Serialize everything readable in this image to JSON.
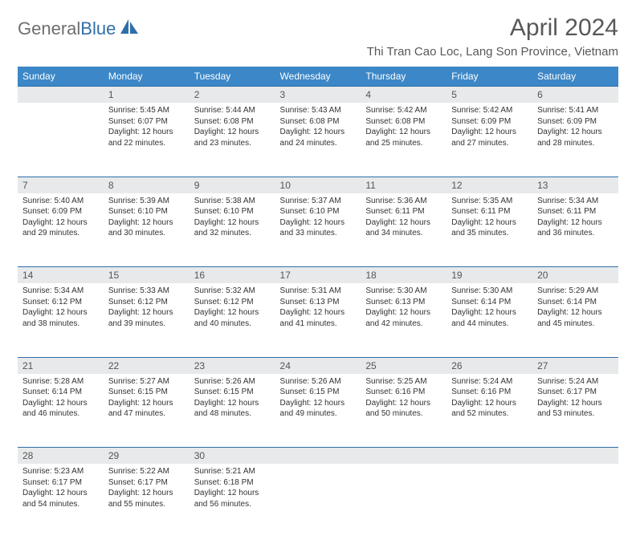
{
  "logo": {
    "part1": "General",
    "part2": "Blue"
  },
  "title": "April 2024",
  "location": "Thi Tran Cao Loc, Lang Son Province, Vietnam",
  "columns": [
    "Sunday",
    "Monday",
    "Tuesday",
    "Wednesday",
    "Thursday",
    "Friday",
    "Saturday"
  ],
  "header_bg": "#3c87c7",
  "header_fg": "#ffffff",
  "daynum_bg": "#e7e9ea",
  "rule_color": "#2f6fa8",
  "text_color": "#333333",
  "title_color": "#585858",
  "weeks": [
    {
      "nums": [
        "",
        "1",
        "2",
        "3",
        "4",
        "5",
        "6"
      ],
      "cells": [
        null,
        {
          "sunrise": "5:45 AM",
          "sunset": "6:07 PM",
          "daylight": "12 hours and 22 minutes."
        },
        {
          "sunrise": "5:44 AM",
          "sunset": "6:08 PM",
          "daylight": "12 hours and 23 minutes."
        },
        {
          "sunrise": "5:43 AM",
          "sunset": "6:08 PM",
          "daylight": "12 hours and 24 minutes."
        },
        {
          "sunrise": "5:42 AM",
          "sunset": "6:08 PM",
          "daylight": "12 hours and 25 minutes."
        },
        {
          "sunrise": "5:42 AM",
          "sunset": "6:09 PM",
          "daylight": "12 hours and 27 minutes."
        },
        {
          "sunrise": "5:41 AM",
          "sunset": "6:09 PM",
          "daylight": "12 hours and 28 minutes."
        }
      ]
    },
    {
      "nums": [
        "7",
        "8",
        "9",
        "10",
        "11",
        "12",
        "13"
      ],
      "cells": [
        {
          "sunrise": "5:40 AM",
          "sunset": "6:09 PM",
          "daylight": "12 hours and 29 minutes."
        },
        {
          "sunrise": "5:39 AM",
          "sunset": "6:10 PM",
          "daylight": "12 hours and 30 minutes."
        },
        {
          "sunrise": "5:38 AM",
          "sunset": "6:10 PM",
          "daylight": "12 hours and 32 minutes."
        },
        {
          "sunrise": "5:37 AM",
          "sunset": "6:10 PM",
          "daylight": "12 hours and 33 minutes."
        },
        {
          "sunrise": "5:36 AM",
          "sunset": "6:11 PM",
          "daylight": "12 hours and 34 minutes."
        },
        {
          "sunrise": "5:35 AM",
          "sunset": "6:11 PM",
          "daylight": "12 hours and 35 minutes."
        },
        {
          "sunrise": "5:34 AM",
          "sunset": "6:11 PM",
          "daylight": "12 hours and 36 minutes."
        }
      ]
    },
    {
      "nums": [
        "14",
        "15",
        "16",
        "17",
        "18",
        "19",
        "20"
      ],
      "cells": [
        {
          "sunrise": "5:34 AM",
          "sunset": "6:12 PM",
          "daylight": "12 hours and 38 minutes."
        },
        {
          "sunrise": "5:33 AM",
          "sunset": "6:12 PM",
          "daylight": "12 hours and 39 minutes."
        },
        {
          "sunrise": "5:32 AM",
          "sunset": "6:12 PM",
          "daylight": "12 hours and 40 minutes."
        },
        {
          "sunrise": "5:31 AM",
          "sunset": "6:13 PM",
          "daylight": "12 hours and 41 minutes."
        },
        {
          "sunrise": "5:30 AM",
          "sunset": "6:13 PM",
          "daylight": "12 hours and 42 minutes."
        },
        {
          "sunrise": "5:30 AM",
          "sunset": "6:14 PM",
          "daylight": "12 hours and 44 minutes."
        },
        {
          "sunrise": "5:29 AM",
          "sunset": "6:14 PM",
          "daylight": "12 hours and 45 minutes."
        }
      ]
    },
    {
      "nums": [
        "21",
        "22",
        "23",
        "24",
        "25",
        "26",
        "27"
      ],
      "cells": [
        {
          "sunrise": "5:28 AM",
          "sunset": "6:14 PM",
          "daylight": "12 hours and 46 minutes."
        },
        {
          "sunrise": "5:27 AM",
          "sunset": "6:15 PM",
          "daylight": "12 hours and 47 minutes."
        },
        {
          "sunrise": "5:26 AM",
          "sunset": "6:15 PM",
          "daylight": "12 hours and 48 minutes."
        },
        {
          "sunrise": "5:26 AM",
          "sunset": "6:15 PM",
          "daylight": "12 hours and 49 minutes."
        },
        {
          "sunrise": "5:25 AM",
          "sunset": "6:16 PM",
          "daylight": "12 hours and 50 minutes."
        },
        {
          "sunrise": "5:24 AM",
          "sunset": "6:16 PM",
          "daylight": "12 hours and 52 minutes."
        },
        {
          "sunrise": "5:24 AM",
          "sunset": "6:17 PM",
          "daylight": "12 hours and 53 minutes."
        }
      ]
    },
    {
      "nums": [
        "28",
        "29",
        "30",
        "",
        "",
        "",
        ""
      ],
      "cells": [
        {
          "sunrise": "5:23 AM",
          "sunset": "6:17 PM",
          "daylight": "12 hours and 54 minutes."
        },
        {
          "sunrise": "5:22 AM",
          "sunset": "6:17 PM",
          "daylight": "12 hours and 55 minutes."
        },
        {
          "sunrise": "5:21 AM",
          "sunset": "6:18 PM",
          "daylight": "12 hours and 56 minutes."
        },
        null,
        null,
        null,
        null
      ]
    }
  ],
  "labels": {
    "sunrise": "Sunrise:",
    "sunset": "Sunset:",
    "daylight": "Daylight:"
  }
}
